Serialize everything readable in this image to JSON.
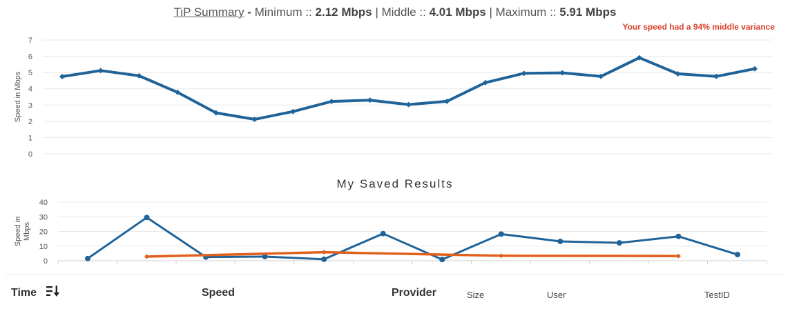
{
  "summary": {
    "link_label": "TiP Summary",
    "dash": " - ",
    "min_label": "Minimum :: ",
    "min_value": "2.12 Mbps",
    "sep1": " | ",
    "mid_label": "Middle :: ",
    "mid_value": "4.01 Mbps",
    "sep2": " | ",
    "max_label": "Maximum :: ",
    "max_value": "5.91 Mbps",
    "variance": "Your speed had a 94% middle variance",
    "variance_color": "#d9412a"
  },
  "saved": {
    "title": "My Saved Results"
  },
  "table_header": {
    "time": "Time",
    "speed": "Speed",
    "provider": "Provider",
    "size": "Size",
    "user": "User",
    "testid": "TestID",
    "sort_icon": "sort-icon"
  },
  "chart_data": [
    {
      "type": "line",
      "title": "",
      "ylabel": "Speed in Mbps",
      "ylim": [
        0,
        7
      ],
      "yticks": [
        0,
        1,
        2,
        3,
        4,
        5,
        6,
        7
      ],
      "grid": true,
      "series": [
        {
          "color": "#1f6399",
          "values": [
            4.75,
            5.12,
            4.8,
            3.78,
            2.52,
            2.12,
            2.6,
            3.22,
            3.3,
            3.03,
            3.23,
            4.38,
            4.95,
            4.98,
            4.76,
            5.91,
            4.92,
            4.76,
            5.23
          ]
        }
      ]
    },
    {
      "type": "line",
      "title": "",
      "ylabel": "Speed in Mbps",
      "ylim": [
        0,
        40
      ],
      "yticks": [
        0,
        10,
        20,
        30,
        40
      ],
      "grid": true,
      "series": [
        {
          "color": "#1f6399",
          "points": [
            [
              1,
              1.5
            ],
            [
              2,
              29.5
            ],
            [
              3,
              2.5
            ],
            [
              4,
              2.8
            ],
            [
              5,
              1
            ],
            [
              6,
              18.5
            ],
            [
              7,
              0.8
            ],
            [
              8,
              18.2
            ],
            [
              9,
              13.2
            ],
            [
              10,
              12.2
            ],
            [
              11,
              16.6
            ],
            [
              12,
              4.2
            ]
          ]
        },
        {
          "color": "#e0601c",
          "points": [
            [
              2,
              2.8
            ],
            [
              5,
              5.8
            ],
            [
              8,
              3.4
            ],
            [
              11,
              3.2
            ]
          ]
        }
      ]
    }
  ]
}
